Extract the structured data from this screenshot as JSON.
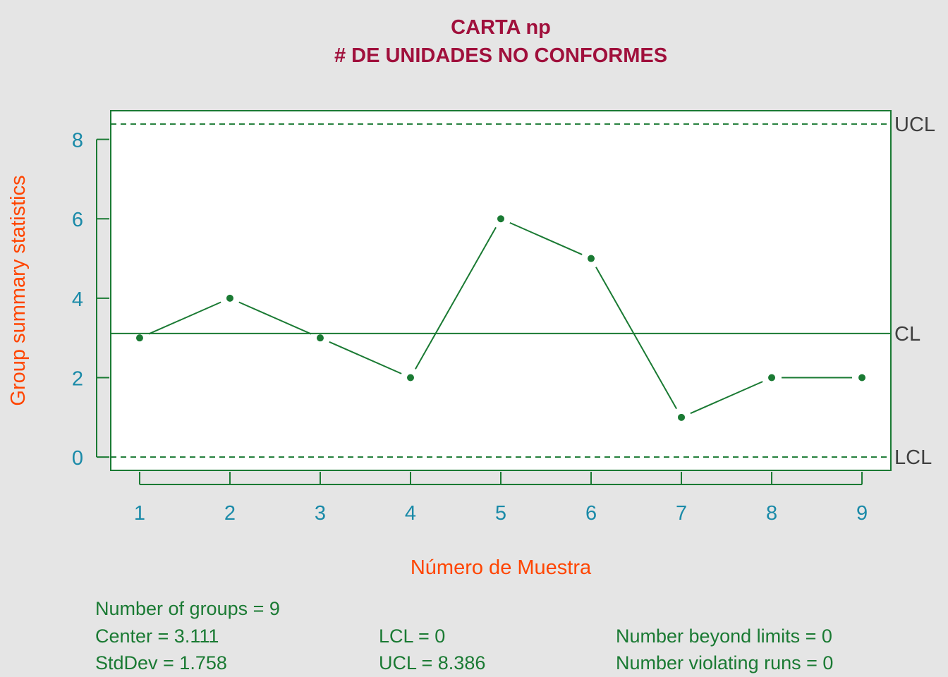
{
  "colors": {
    "background": "#e5e5e5",
    "plot_area": "#ffffff",
    "line": "#1a7a33",
    "title": "#a0103c",
    "axis_label": "#ff4500",
    "tick_label": "#1a8aa8",
    "limit_label": "#404040",
    "stats_text": "#1a7a33"
  },
  "chart_data": {
    "type": "line",
    "title": "CARTA np",
    "subtitle": "# DE UNIDADES NO CONFORMES",
    "xlabel": "Número de Muestra",
    "ylabel": "Group summary statistics",
    "x": [
      1,
      2,
      3,
      4,
      5,
      6,
      7,
      8,
      9
    ],
    "values": [
      3,
      4,
      3,
      2,
      6,
      5,
      1,
      2,
      2
    ],
    "xlim": [
      0.68,
      9.32
    ],
    "ylim": [
      -0.335,
      8.721
    ],
    "x_ticks": [
      "1",
      "2",
      "3",
      "4",
      "5",
      "6",
      "7",
      "8",
      "9"
    ],
    "y_ticks": [
      0,
      2,
      4,
      6,
      8
    ],
    "control_limits": {
      "center": 3.111,
      "lcl": 0,
      "ucl": 8.386,
      "labels": {
        "ucl": "UCL",
        "center": "CL",
        "lcl": "LCL"
      }
    },
    "grid": false
  },
  "stats": {
    "groups": "Number of groups = 9",
    "center": "Center = 3.111",
    "stddev": "StdDev = 1.758",
    "lcl": "LCL = 0",
    "ucl": "UCL = 8.386",
    "beyond": "Number beyond limits = 0",
    "violating": "Number violating runs = 0"
  }
}
